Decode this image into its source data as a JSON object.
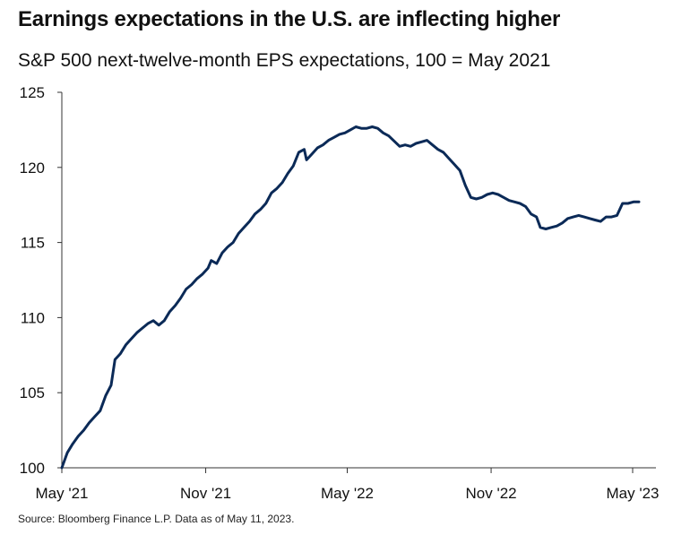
{
  "title": "Earnings expectations in the U.S. are inflecting higher",
  "subtitle": "S&P 500 next-twelve-month EPS expectations, 100 = May 2021",
  "source": "Source: Bloomberg Finance L.P. Data as of May 11, 2023.",
  "colors": {
    "line": "#0b2a57",
    "axis": "#333333",
    "text": "#111111"
  },
  "chart_data": {
    "type": "line",
    "title": "Earnings expectations in the U.S. are inflecting higher",
    "subtitle": "S&P 500 next-twelve-month EPS expectations, 100 = May 2021",
    "xlabel": "",
    "ylabel": "",
    "ylim": [
      100,
      125
    ],
    "y_ticks": [
      100,
      105,
      110,
      115,
      120,
      125
    ],
    "x_ticks": [
      {
        "label": "May '21",
        "date": "2021-05-01"
      },
      {
        "label": "Nov '21",
        "date": "2021-11-01"
      },
      {
        "label": "May '22",
        "date": "2022-05-01"
      },
      {
        "label": "Nov '22",
        "date": "2022-11-01"
      },
      {
        "label": "May '23",
        "date": "2023-05-01"
      }
    ],
    "grid": false,
    "series": [
      {
        "points": [
          [
            "2021-05-01",
            100.0
          ],
          [
            "2021-05-08",
            101.0
          ],
          [
            "2021-05-15",
            101.6
          ],
          [
            "2021-05-22",
            102.1
          ],
          [
            "2021-05-29",
            102.5
          ],
          [
            "2021-06-05",
            103.0
          ],
          [
            "2021-06-12",
            103.4
          ],
          [
            "2021-06-19",
            103.8
          ],
          [
            "2021-06-26",
            104.8
          ],
          [
            "2021-07-03",
            105.5
          ],
          [
            "2021-07-08",
            107.2
          ],
          [
            "2021-07-15",
            107.6
          ],
          [
            "2021-07-22",
            108.2
          ],
          [
            "2021-07-29",
            108.6
          ],
          [
            "2021-08-05",
            109.0
          ],
          [
            "2021-08-12",
            109.3
          ],
          [
            "2021-08-19",
            109.6
          ],
          [
            "2021-08-26",
            109.8
          ],
          [
            "2021-09-02",
            109.5
          ],
          [
            "2021-09-09",
            109.8
          ],
          [
            "2021-09-16",
            110.4
          ],
          [
            "2021-09-23",
            110.8
          ],
          [
            "2021-09-30",
            111.3
          ],
          [
            "2021-10-07",
            111.9
          ],
          [
            "2021-10-14",
            112.2
          ],
          [
            "2021-10-21",
            112.6
          ],
          [
            "2021-10-28",
            112.9
          ],
          [
            "2021-11-04",
            113.3
          ],
          [
            "2021-11-08",
            113.8
          ],
          [
            "2021-11-15",
            113.6
          ],
          [
            "2021-11-22",
            114.3
          ],
          [
            "2021-11-29",
            114.7
          ],
          [
            "2021-12-06",
            115.0
          ],
          [
            "2021-12-13",
            115.6
          ],
          [
            "2021-12-20",
            116.0
          ],
          [
            "2021-12-27",
            116.4
          ],
          [
            "2022-01-03",
            116.9
          ],
          [
            "2022-01-10",
            117.2
          ],
          [
            "2022-01-17",
            117.6
          ],
          [
            "2022-01-24",
            118.3
          ],
          [
            "2022-01-31",
            118.6
          ],
          [
            "2022-02-07",
            119.0
          ],
          [
            "2022-02-14",
            119.6
          ],
          [
            "2022-02-21",
            120.1
          ],
          [
            "2022-02-28",
            121.0
          ],
          [
            "2022-03-07",
            121.2
          ],
          [
            "2022-03-10",
            120.5
          ],
          [
            "2022-03-17",
            120.9
          ],
          [
            "2022-03-24",
            121.3
          ],
          [
            "2022-03-31",
            121.5
          ],
          [
            "2022-04-07",
            121.8
          ],
          [
            "2022-04-14",
            122.0
          ],
          [
            "2022-04-21",
            122.2
          ],
          [
            "2022-04-28",
            122.3
          ],
          [
            "2022-05-05",
            122.5
          ],
          [
            "2022-05-12",
            122.7
          ],
          [
            "2022-05-19",
            122.6
          ],
          [
            "2022-05-26",
            122.6
          ],
          [
            "2022-06-02",
            122.7
          ],
          [
            "2022-06-09",
            122.6
          ],
          [
            "2022-06-16",
            122.3
          ],
          [
            "2022-06-23",
            122.1
          ],
          [
            "2022-07-07",
            121.4
          ],
          [
            "2022-07-14",
            121.5
          ],
          [
            "2022-07-21",
            121.4
          ],
          [
            "2022-07-28",
            121.6
          ],
          [
            "2022-08-04",
            121.7
          ],
          [
            "2022-08-11",
            121.8
          ],
          [
            "2022-08-18",
            121.5
          ],
          [
            "2022-08-25",
            121.2
          ],
          [
            "2022-09-01",
            121.0
          ],
          [
            "2022-09-08",
            120.6
          ],
          [
            "2022-09-15",
            120.2
          ],
          [
            "2022-09-22",
            119.8
          ],
          [
            "2022-09-29",
            118.8
          ],
          [
            "2022-10-06",
            118.0
          ],
          [
            "2022-10-13",
            117.9
          ],
          [
            "2022-10-20",
            118.0
          ],
          [
            "2022-10-27",
            118.2
          ],
          [
            "2022-11-03",
            118.3
          ],
          [
            "2022-11-10",
            118.2
          ],
          [
            "2022-11-17",
            118.0
          ],
          [
            "2022-11-24",
            117.8
          ],
          [
            "2022-12-01",
            117.7
          ],
          [
            "2022-12-08",
            117.6
          ],
          [
            "2022-12-15",
            117.4
          ],
          [
            "2022-12-22",
            116.9
          ],
          [
            "2022-12-29",
            116.7
          ],
          [
            "2023-01-03",
            116.0
          ],
          [
            "2023-01-10",
            115.9
          ],
          [
            "2023-01-17",
            116.0
          ],
          [
            "2023-01-24",
            116.1
          ],
          [
            "2023-01-31",
            116.3
          ],
          [
            "2023-02-07",
            116.6
          ],
          [
            "2023-02-14",
            116.7
          ],
          [
            "2023-02-21",
            116.8
          ],
          [
            "2023-02-28",
            116.7
          ],
          [
            "2023-03-07",
            116.6
          ],
          [
            "2023-03-14",
            116.5
          ],
          [
            "2023-03-21",
            116.4
          ],
          [
            "2023-03-28",
            116.7
          ],
          [
            "2023-04-04",
            116.7
          ],
          [
            "2023-04-11",
            116.8
          ],
          [
            "2023-04-18",
            117.6
          ],
          [
            "2023-04-25",
            117.6
          ],
          [
            "2023-05-02",
            117.7
          ],
          [
            "2023-05-09",
            117.7
          ]
        ]
      }
    ]
  }
}
